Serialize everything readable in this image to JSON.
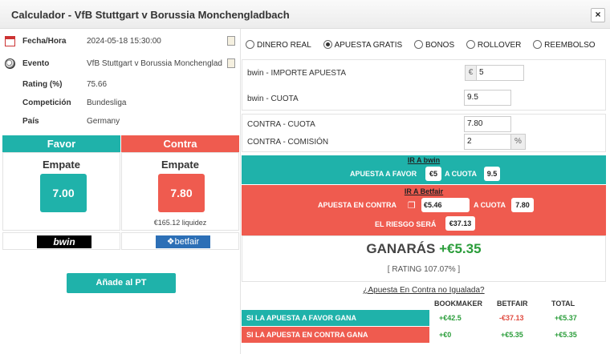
{
  "window": {
    "title": "Calculador - VfB Stuttgart v Borussia Monchengladbach",
    "close_label": "×"
  },
  "info": [
    {
      "label": "Fecha/Hora",
      "value": "2024-05-18 15:30:00",
      "icon": "calendar-icon"
    },
    {
      "label": "Evento",
      "value": "VfB Stuttgart v Borussia Monchenglad",
      "icon": "soccer-ball-icon"
    },
    {
      "label": "Rating (%)",
      "value": "75.66"
    },
    {
      "label": "Competición",
      "value": "Bundesliga"
    },
    {
      "label": "País",
      "value": "Germany"
    }
  ],
  "favor": {
    "header": "Favor",
    "selection": "Empate",
    "odds": "7.00",
    "bookmaker": "bwin"
  },
  "contra": {
    "header": "Contra",
    "selection": "Empate",
    "odds": "7.80",
    "liquidity": "€165.12 liquidez",
    "exchange": "betfair"
  },
  "add_button": "Añade al PT",
  "modes": [
    "DINERO REAL",
    "APUESTA GRATIS",
    "BONOS",
    "ROLLOVER",
    "REEMBOLSO"
  ],
  "selected_mode": "APUESTA GRATIS",
  "form": {
    "stake_label": "bwin - IMPORTE APUESTA",
    "stake_prefix": "€",
    "stake_value": "5",
    "odds_label": "bwin - CUOTA",
    "odds_value": "9.5",
    "lay_odds_label": "CONTRA - CUOTA",
    "lay_odds_value": "7.80",
    "commission_label": "CONTRA - COMISIÓN",
    "commission_value": "2",
    "commission_suffix": "%"
  },
  "back_band": {
    "link": "IR A bwin",
    "text1": "APUESTA A FAVOR",
    "stake": "€5",
    "text2": "A CUOTA",
    "odds": "9.5"
  },
  "lay_band": {
    "link": "IR A Betfair",
    "text1": "APUESTA EN CONTRA",
    "stake": "€5.46",
    "text2": "A CUOTA",
    "odds": "7.80",
    "risk_label": "EL RIESGO SERÁ",
    "risk": "€37.13"
  },
  "result": {
    "label": "GANARÁS",
    "amount": "+€5.35",
    "rating": "[ RATING 107.07% ]"
  },
  "unmatched_link": "¿Apuesta En Contra no Igualada?",
  "table": {
    "headers": [
      "BOOKMAKER",
      "BETFAIR",
      "TOTAL"
    ],
    "rows": [
      {
        "label": "SI LA APUESTA A FAVOR GANA",
        "bookmaker": "+€42.5",
        "betfair": "-€37.13",
        "total": "+€5.37"
      },
      {
        "label": "SI LA APUESTA EN CONTRA GANA",
        "bookmaker": "+€0",
        "betfair": "+€5.35",
        "total": "+€5.35"
      }
    ]
  },
  "colors": {
    "green": "#1fb2aa",
    "red": "#ef5b4f"
  }
}
